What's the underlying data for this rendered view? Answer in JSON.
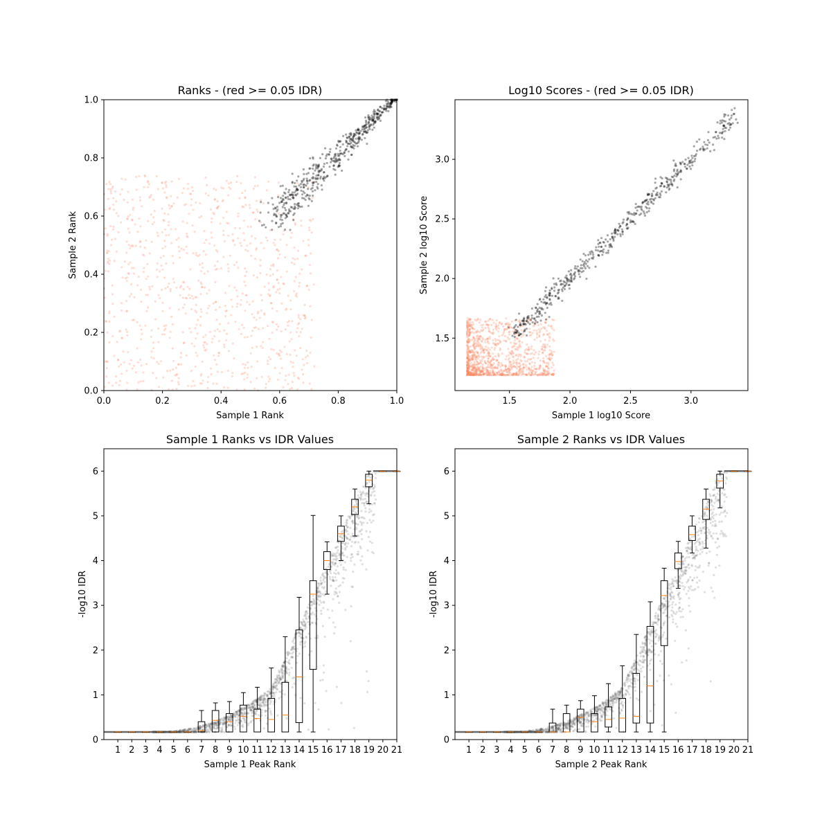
{
  "colors": {
    "pass": "#000000",
    "fail": "#fa8a68",
    "median": "#ff7f0e",
    "box": "#000000"
  },
  "chart_data": [
    {
      "id": "ranks",
      "type": "scatter",
      "title": "Ranks - (red >= 0.05 IDR)",
      "xlabel": "Sample 1 Rank",
      "ylabel": "Sample 2 Rank",
      "xlim": [
        0,
        1
      ],
      "ylim": [
        0,
        1
      ],
      "xticks": [
        "0.0",
        "0.2",
        "0.4",
        "0.6",
        "0.8",
        "1.0"
      ],
      "yticks": [
        "0.0",
        "0.2",
        "0.4",
        "0.6",
        "0.8",
        "1.0"
      ],
      "series": [
        {
          "key": "fail",
          "region": "scattered",
          "range": [
            0,
            0.72
          ],
          "count": 900
        },
        {
          "key": "pass",
          "region": "diagonal",
          "range": [
            0.58,
            1.0
          ],
          "count": 520
        }
      ]
    },
    {
      "id": "scores",
      "type": "scatter",
      "title": "Log10 Scores - (red >= 0.05 IDR)",
      "xlabel": "Sample 1 log10 Score",
      "ylabel": "Sample 2 log10 Score",
      "xlim": [
        1.05,
        3.47
      ],
      "ylim": [
        1.06,
        3.5
      ],
      "xticks": [
        "1.5",
        "2.0",
        "2.5",
        "3.0"
      ],
      "yticks": [
        "1.5",
        "2.0",
        "2.5",
        "3.0"
      ],
      "series": [
        {
          "key": "fail",
          "region": "cluster",
          "range": [
            1.15,
            1.85
          ],
          "count": 1100
        },
        {
          "key": "pass",
          "region": "diagonal",
          "range": [
            1.55,
            3.37
          ],
          "count": 520
        }
      ]
    },
    {
      "id": "idr1",
      "type": "box+scatter",
      "title": "Sample 1 Ranks vs IDR Values",
      "xlabel": "Sample 1 Peak Rank",
      "ylabel": "-log10 IDR",
      "xlim": [
        0,
        21
      ],
      "ylim": [
        0,
        6.5
      ],
      "xticks": [
        "1",
        "2",
        "3",
        "4",
        "5",
        "6",
        "7",
        "8",
        "9",
        "10",
        "11",
        "12",
        "13",
        "14",
        "15",
        "16",
        "17",
        "18",
        "19",
        "20",
        "21"
      ],
      "yticks": [
        "0",
        "1",
        "2",
        "3",
        "4",
        "5",
        "6"
      ],
      "boxes": [
        {
          "bin": 1,
          "wl": 0.17,
          "q1": 0.17,
          "med": 0.17,
          "q3": 0.17,
          "wh": 0.17
        },
        {
          "bin": 2,
          "wl": 0.17,
          "q1": 0.17,
          "med": 0.17,
          "q3": 0.17,
          "wh": 0.17
        },
        {
          "bin": 3,
          "wl": 0.17,
          "q1": 0.17,
          "med": 0.17,
          "q3": 0.17,
          "wh": 0.17
        },
        {
          "bin": 4,
          "wl": 0.17,
          "q1": 0.17,
          "med": 0.17,
          "q3": 0.17,
          "wh": 0.17
        },
        {
          "bin": 5,
          "wl": 0.17,
          "q1": 0.17,
          "med": 0.17,
          "q3": 0.17,
          "wh": 0.17
        },
        {
          "bin": 6,
          "wl": 0.17,
          "q1": 0.17,
          "med": 0.17,
          "q3": 0.17,
          "wh": 0.17
        },
        {
          "bin": 7,
          "wl": 0.17,
          "q1": 0.17,
          "med": 0.2,
          "q3": 0.4,
          "wh": 0.65
        },
        {
          "bin": 8,
          "wl": 0.17,
          "q1": 0.17,
          "med": 0.43,
          "q3": 0.65,
          "wh": 0.82
        },
        {
          "bin": 9,
          "wl": 0.17,
          "q1": 0.17,
          "med": 0.4,
          "q3": 0.58,
          "wh": 0.85
        },
        {
          "bin": 10,
          "wl": 0.17,
          "q1": 0.17,
          "med": 0.52,
          "q3": 0.77,
          "wh": 1.05
        },
        {
          "bin": 11,
          "wl": 0.17,
          "q1": 0.17,
          "med": 0.47,
          "q3": 0.68,
          "wh": 1.17
        },
        {
          "bin": 12,
          "wl": 0.17,
          "q1": 0.17,
          "med": 0.45,
          "q3": 0.92,
          "wh": 1.6
        },
        {
          "bin": 13,
          "wl": 0.17,
          "q1": 0.17,
          "med": 0.55,
          "q3": 1.28,
          "wh": 2.3
        },
        {
          "bin": 14,
          "wl": 0.17,
          "q1": 0.38,
          "med": 1.4,
          "q3": 2.45,
          "wh": 3.18
        },
        {
          "bin": 15,
          "wl": 0.17,
          "q1": 1.57,
          "med": 3.25,
          "q3": 3.55,
          "wh": 5.01
        },
        {
          "bin": 16,
          "wl": 3.25,
          "q1": 3.8,
          "med": 4.0,
          "q3": 4.2,
          "wh": 4.42
        },
        {
          "bin": 17,
          "wl": 4.0,
          "q1": 4.43,
          "med": 4.6,
          "q3": 4.77,
          "wh": 5.0
        },
        {
          "bin": 18,
          "wl": 4.55,
          "q1": 5.03,
          "med": 5.2,
          "q3": 5.37,
          "wh": 5.6
        },
        {
          "bin": 19,
          "wl": 5.27,
          "q1": 5.65,
          "med": 5.8,
          "q3": 5.93,
          "wh": 6.0
        },
        {
          "bin": 20,
          "wl": 6.0,
          "q1": 6.0,
          "med": 6.0,
          "q3": 6.0,
          "wh": 6.0
        },
        {
          "bin": 21,
          "wl": 6.0,
          "q1": 6.0,
          "med": 6.0,
          "q3": 6.0,
          "wh": 6.0
        }
      ]
    },
    {
      "id": "idr2",
      "type": "box+scatter",
      "title": "Sample 2 Ranks vs IDR Values",
      "xlabel": "Sample 2 Peak Rank",
      "ylabel": "-log10 IDR",
      "xlim": [
        0,
        21
      ],
      "ylim": [
        0,
        6.5
      ],
      "xticks": [
        "1",
        "2",
        "3",
        "4",
        "5",
        "6",
        "7",
        "8",
        "9",
        "10",
        "11",
        "12",
        "13",
        "14",
        "15",
        "16",
        "17",
        "18",
        "19",
        "20",
        "21"
      ],
      "yticks": [
        "0",
        "1",
        "2",
        "3",
        "4",
        "5",
        "6"
      ],
      "boxes": [
        {
          "bin": 1,
          "wl": 0.17,
          "q1": 0.17,
          "med": 0.17,
          "q3": 0.17,
          "wh": 0.17
        },
        {
          "bin": 2,
          "wl": 0.17,
          "q1": 0.17,
          "med": 0.17,
          "q3": 0.17,
          "wh": 0.17
        },
        {
          "bin": 3,
          "wl": 0.17,
          "q1": 0.17,
          "med": 0.17,
          "q3": 0.17,
          "wh": 0.17
        },
        {
          "bin": 4,
          "wl": 0.17,
          "q1": 0.17,
          "med": 0.17,
          "q3": 0.17,
          "wh": 0.17
        },
        {
          "bin": 5,
          "wl": 0.17,
          "q1": 0.17,
          "med": 0.17,
          "q3": 0.17,
          "wh": 0.17
        },
        {
          "bin": 6,
          "wl": 0.17,
          "q1": 0.17,
          "med": 0.17,
          "q3": 0.17,
          "wh": 0.17
        },
        {
          "bin": 7,
          "wl": 0.17,
          "q1": 0.17,
          "med": 0.17,
          "q3": 0.37,
          "wh": 0.68
        },
        {
          "bin": 8,
          "wl": 0.17,
          "q1": 0.17,
          "med": 0.17,
          "q3": 0.58,
          "wh": 0.77
        },
        {
          "bin": 9,
          "wl": 0.17,
          "q1": 0.17,
          "med": 0.5,
          "q3": 0.68,
          "wh": 0.87
        },
        {
          "bin": 10,
          "wl": 0.17,
          "q1": 0.17,
          "med": 0.4,
          "q3": 0.58,
          "wh": 0.98
        },
        {
          "bin": 11,
          "wl": 0.17,
          "q1": 0.28,
          "med": 0.45,
          "q3": 0.73,
          "wh": 1.25
        },
        {
          "bin": 12,
          "wl": 0.17,
          "q1": 0.17,
          "med": 0.48,
          "q3": 0.92,
          "wh": 1.65
        },
        {
          "bin": 13,
          "wl": 0.17,
          "q1": 0.37,
          "med": 0.52,
          "q3": 1.48,
          "wh": 2.35
        },
        {
          "bin": 14,
          "wl": 0.17,
          "q1": 0.37,
          "med": 1.2,
          "q3": 2.53,
          "wh": 3.08
        },
        {
          "bin": 15,
          "wl": 0.17,
          "q1": 2.1,
          "med": 3.22,
          "q3": 3.55,
          "wh": 3.83
        },
        {
          "bin": 16,
          "wl": 3.38,
          "q1": 3.82,
          "med": 3.98,
          "q3": 4.17,
          "wh": 4.43
        },
        {
          "bin": 17,
          "wl": 4.17,
          "q1": 4.45,
          "med": 4.58,
          "q3": 4.77,
          "wh": 5.0
        },
        {
          "bin": 18,
          "wl": 4.28,
          "q1": 4.92,
          "med": 5.15,
          "q3": 5.37,
          "wh": 5.6
        },
        {
          "bin": 19,
          "wl": 5.18,
          "q1": 5.62,
          "med": 5.78,
          "q3": 5.93,
          "wh": 6.0
        },
        {
          "bin": 20,
          "wl": 6.0,
          "q1": 6.0,
          "med": 6.0,
          "q3": 6.0,
          "wh": 6.0
        },
        {
          "bin": 21,
          "wl": 6.0,
          "q1": 6.0,
          "med": 6.0,
          "q3": 6.0,
          "wh": 6.0
        }
      ]
    }
  ]
}
